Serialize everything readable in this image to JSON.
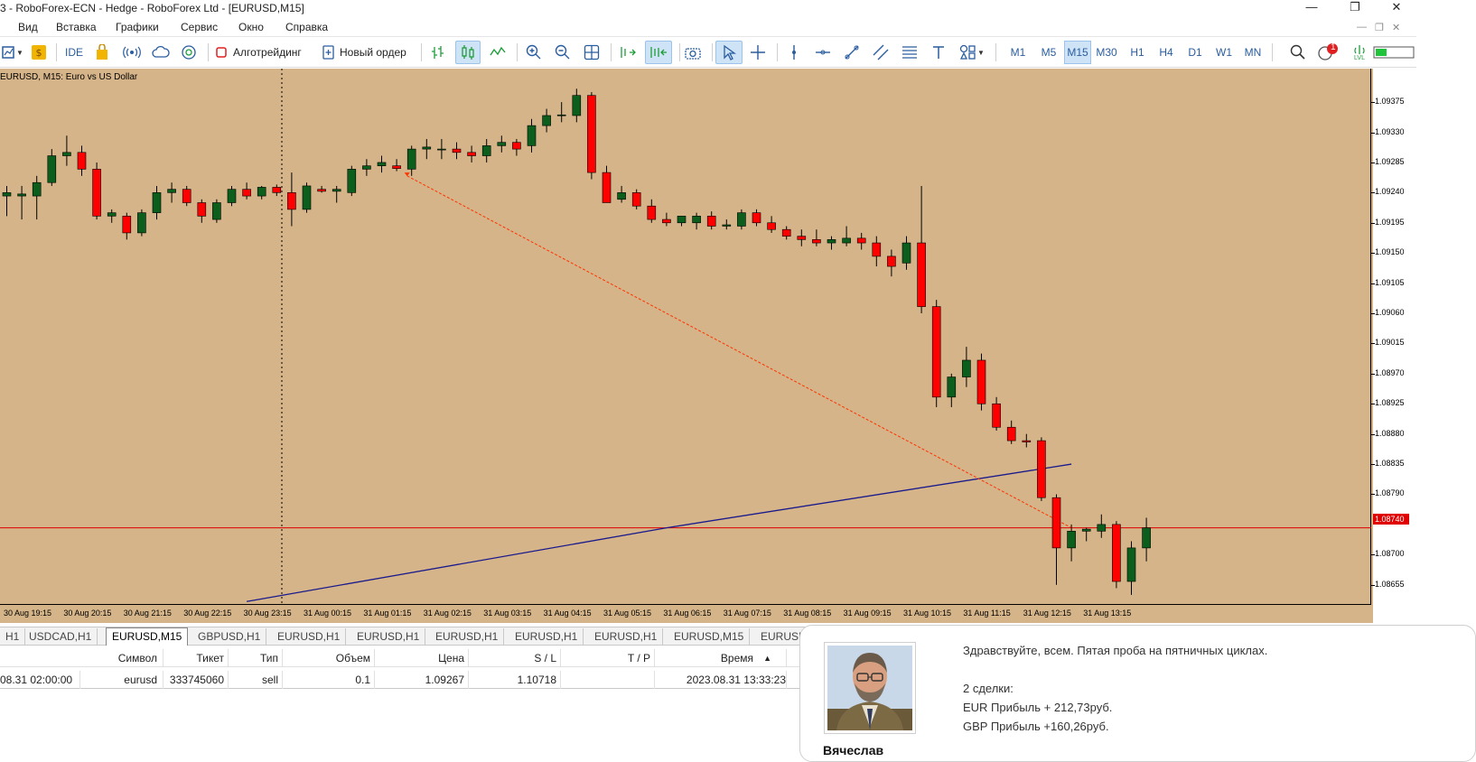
{
  "window": {
    "title": "3 - RoboForex-ECN - Hedge - RoboForex Ltd - [EURUSD,M15]",
    "minimize": "—",
    "restore": "❐",
    "close": "✕"
  },
  "menu": {
    "items": [
      "Вид",
      "Вставка",
      "Графики",
      "Сервис",
      "Окно",
      "Справка"
    ],
    "mdi_controls": [
      "—",
      "❐",
      "✕"
    ]
  },
  "toolbar": {
    "ide_label": "IDE",
    "algotrading_label": "Алготрейдинг",
    "new_order_label": "Новый ордер",
    "timeframes": [
      "M1",
      "M5",
      "M15",
      "M30",
      "H1",
      "H4",
      "D1",
      "W1",
      "MN"
    ],
    "active_timeframe": "M15",
    "notification_count": "1",
    "lvl_label": "LVL"
  },
  "chart": {
    "label": "EURUSD, M15:  Euro vs US Dollar",
    "current_price_label": "1.08740",
    "colors": {
      "background": "#d4b488",
      "bull": "#0b5e1c",
      "bear": "#ff0000",
      "ma": "#1a1a8c",
      "price_line": "#e00000",
      "trend": "#ff3300"
    }
  },
  "chart_data": {
    "type": "candlestick",
    "symbol": "EURUSD",
    "timeframe": "M15",
    "y_ticks": [
      "1.09375",
      "1.09330",
      "1.09285",
      "1.09240",
      "1.09195",
      "1.09150",
      "1.09105",
      "1.09060",
      "1.09015",
      "1.08970",
      "1.08925",
      "1.08880",
      "1.08835",
      "1.08790",
      "1.08700",
      "1.08655"
    ],
    "ylim": [
      1.08625,
      1.09425
    ],
    "x_ticks": [
      "30 Aug 19:15",
      "30 Aug 20:15",
      "30 Aug 21:15",
      "30 Aug 22:15",
      "30 Aug 23:15",
      "31 Aug 00:15",
      "31 Aug 01:15",
      "31 Aug 02:15",
      "31 Aug 03:15",
      "31 Aug 04:15",
      "31 Aug 05:15",
      "31 Aug 06:15",
      "31 Aug 07:15",
      "31 Aug 08:15",
      "31 Aug 09:15",
      "31 Aug 10:15",
      "31 Aug 11:15",
      "31 Aug 12:15",
      "31 Aug 13:15"
    ],
    "candles": [
      [
        1.09235,
        1.0925,
        1.09205,
        1.0924
      ],
      [
        1.09235,
        1.0925,
        1.092,
        1.09238
      ],
      [
        1.09235,
        1.09265,
        1.092,
        1.09255
      ],
      [
        1.09255,
        1.09305,
        1.0925,
        1.09295
      ],
      [
        1.09295,
        1.09325,
        1.0928,
        1.093
      ],
      [
        1.093,
        1.0931,
        1.09265,
        1.09275
      ],
      [
        1.09275,
        1.09285,
        1.092,
        1.09205
      ],
      [
        1.09205,
        1.09215,
        1.09195,
        1.0921
      ],
      [
        1.09205,
        1.0921,
        1.0917,
        1.0918
      ],
      [
        1.0918,
        1.09215,
        1.09175,
        1.0921
      ],
      [
        1.0921,
        1.0925,
        1.092,
        1.0924
      ],
      [
        1.0924,
        1.09255,
        1.09225,
        1.09245
      ],
      [
        1.09245,
        1.0925,
        1.0922,
        1.09225
      ],
      [
        1.09225,
        1.0923,
        1.09195,
        1.09205
      ],
      [
        1.092,
        1.0923,
        1.09195,
        1.09225
      ],
      [
        1.09225,
        1.0925,
        1.0922,
        1.09245
      ],
      [
        1.09245,
        1.09255,
        1.0923,
        1.09235
      ],
      [
        1.09235,
        1.0925,
        1.0923,
        1.09248
      ],
      [
        1.09248,
        1.09252,
        1.09235,
        1.0924
      ],
      [
        1.0924,
        1.0927,
        1.0919,
        1.09215
      ],
      [
        1.09215,
        1.09255,
        1.0921,
        1.0925
      ],
      [
        1.09245,
        1.0925,
        1.0924,
        1.09242
      ],
      [
        1.09242,
        1.0925,
        1.09225,
        1.09245
      ],
      [
        1.0924,
        1.0928,
        1.09235,
        1.09275
      ],
      [
        1.09275,
        1.0929,
        1.09265,
        1.0928
      ],
      [
        1.0928,
        1.09295,
        1.0927,
        1.09285
      ],
      [
        1.0928,
        1.0929,
        1.09272,
        1.09276
      ],
      [
        1.09275,
        1.0931,
        1.09265,
        1.09305
      ],
      [
        1.09305,
        1.0932,
        1.0929,
        1.09308
      ],
      [
        1.09305,
        1.0932,
        1.0929,
        1.09305
      ],
      [
        1.09305,
        1.09315,
        1.0929,
        1.093
      ],
      [
        1.093,
        1.0931,
        1.09285,
        1.09295
      ],
      [
        1.09295,
        1.0932,
        1.09285,
        1.0931
      ],
      [
        1.0931,
        1.09325,
        1.093,
        1.09315
      ],
      [
        1.09315,
        1.0932,
        1.09295,
        1.09305
      ],
      [
        1.0931,
        1.0935,
        1.093,
        1.0934
      ],
      [
        1.0934,
        1.09365,
        1.0933,
        1.09355
      ],
      [
        1.09355,
        1.09375,
        1.09345,
        1.09356
      ],
      [
        1.09355,
        1.09395,
        1.09345,
        1.09385
      ],
      [
        1.09385,
        1.0939,
        1.0926,
        1.0927
      ],
      [
        1.0927,
        1.0928,
        1.0923,
        1.09225
      ],
      [
        1.0923,
        1.0925,
        1.09225,
        1.0924
      ],
      [
        1.0924,
        1.09245,
        1.09215,
        1.0922
      ],
      [
        1.0922,
        1.0923,
        1.09195,
        1.092
      ],
      [
        1.092,
        1.0921,
        1.0919,
        1.09195
      ],
      [
        1.09195,
        1.09205,
        1.0919,
        1.09205
      ],
      [
        1.09195,
        1.0921,
        1.09185,
        1.09205
      ],
      [
        1.09205,
        1.09212,
        1.09185,
        1.0919
      ],
      [
        1.0919,
        1.092,
        1.09185,
        1.09192
      ],
      [
        1.0919,
        1.09215,
        1.09185,
        1.0921
      ],
      [
        1.0921,
        1.09215,
        1.0919,
        1.09195
      ],
      [
        1.09195,
        1.09205,
        1.0918,
        1.09185
      ],
      [
        1.09185,
        1.0919,
        1.0917,
        1.09175
      ],
      [
        1.09175,
        1.09185,
        1.0916,
        1.0917
      ],
      [
        1.0917,
        1.09185,
        1.0916,
        1.09165
      ],
      [
        1.09165,
        1.09175,
        1.09155,
        1.0917
      ],
      [
        1.09165,
        1.0919,
        1.0916,
        1.09172
      ],
      [
        1.09172,
        1.0918,
        1.09155,
        1.09165
      ],
      [
        1.09165,
        1.09175,
        1.0913,
        1.09145
      ],
      [
        1.09145,
        1.09155,
        1.09115,
        1.0913
      ],
      [
        1.09135,
        1.09175,
        1.09125,
        1.09165
      ],
      [
        1.09165,
        1.0925,
        1.0906,
        1.0907
      ],
      [
        1.0907,
        1.0908,
        1.0892,
        1.08935
      ],
      [
        1.08935,
        1.0897,
        1.0892,
        1.08965
      ],
      [
        1.08965,
        1.0901,
        1.0895,
        1.0899
      ],
      [
        1.0899,
        1.09,
        1.08915,
        1.08925
      ],
      [
        1.08925,
        1.08935,
        1.08885,
        1.0889
      ],
      [
        1.0889,
        1.089,
        1.08865,
        1.0887
      ],
      [
        1.0887,
        1.0888,
        1.0886,
        1.08868
      ],
      [
        1.0887,
        1.08875,
        1.0878,
        1.08785
      ],
      [
        1.08785,
        1.0879,
        1.08655,
        1.0871
      ],
      [
        1.0871,
        1.08745,
        1.0869,
        1.08735
      ],
      [
        1.08735,
        1.0874,
        1.0872,
        1.08738
      ],
      [
        1.08735,
        1.0876,
        1.08725,
        1.08745
      ],
      [
        1.08745,
        1.0875,
        1.0865,
        1.0866
      ],
      [
        1.0866,
        1.0872,
        1.0864,
        1.0871
      ],
      [
        1.0871,
        1.08755,
        1.0869,
        1.0874
      ]
    ],
    "moving_average": [
      [
        1.0863,
        16
      ],
      [
        1.0874,
        44
      ],
      [
        1.08835,
        71
      ]
    ],
    "trend_line": [
      [
        1.09265,
        26.7
      ],
      [
        1.0874,
        71.0
      ]
    ],
    "current_price": 1.0874
  },
  "tabs": [
    "H1",
    "USDCAD,H1",
    "EURUSD,M15",
    "GBPUSD,H1",
    "EURUSD,H1",
    "EURUSD,H1",
    "EURUSD,H1",
    "EURUSD,H1",
    "EURUSD,H1",
    "EURUSD,M15",
    "EURUSD"
  ],
  "active_tab_index": 2,
  "trades": {
    "headers": [
      "Символ",
      "Тикет",
      "Тип",
      "Объем",
      "Цена",
      "S / L",
      "T / P",
      "Время"
    ],
    "sort_arrow": "▲",
    "row": {
      "time_prefix": "08.31 02:00:00",
      "symbol": "eurusd",
      "ticket": "333745060",
      "type": "sell",
      "volume": "0.1",
      "price": "1.09267",
      "sl": "1.10718",
      "tp": "",
      "time": "2023.08.31 13:33:23"
    }
  },
  "comment": {
    "author": "Вячеслав",
    "lines": [
      "Здравствуйте, всем. Пятая проба на пятничных циклах.",
      "2 сделки:",
      "EUR Прибыль + 212,73руб.",
      "GBP Прибыль +160,26руб."
    ]
  }
}
